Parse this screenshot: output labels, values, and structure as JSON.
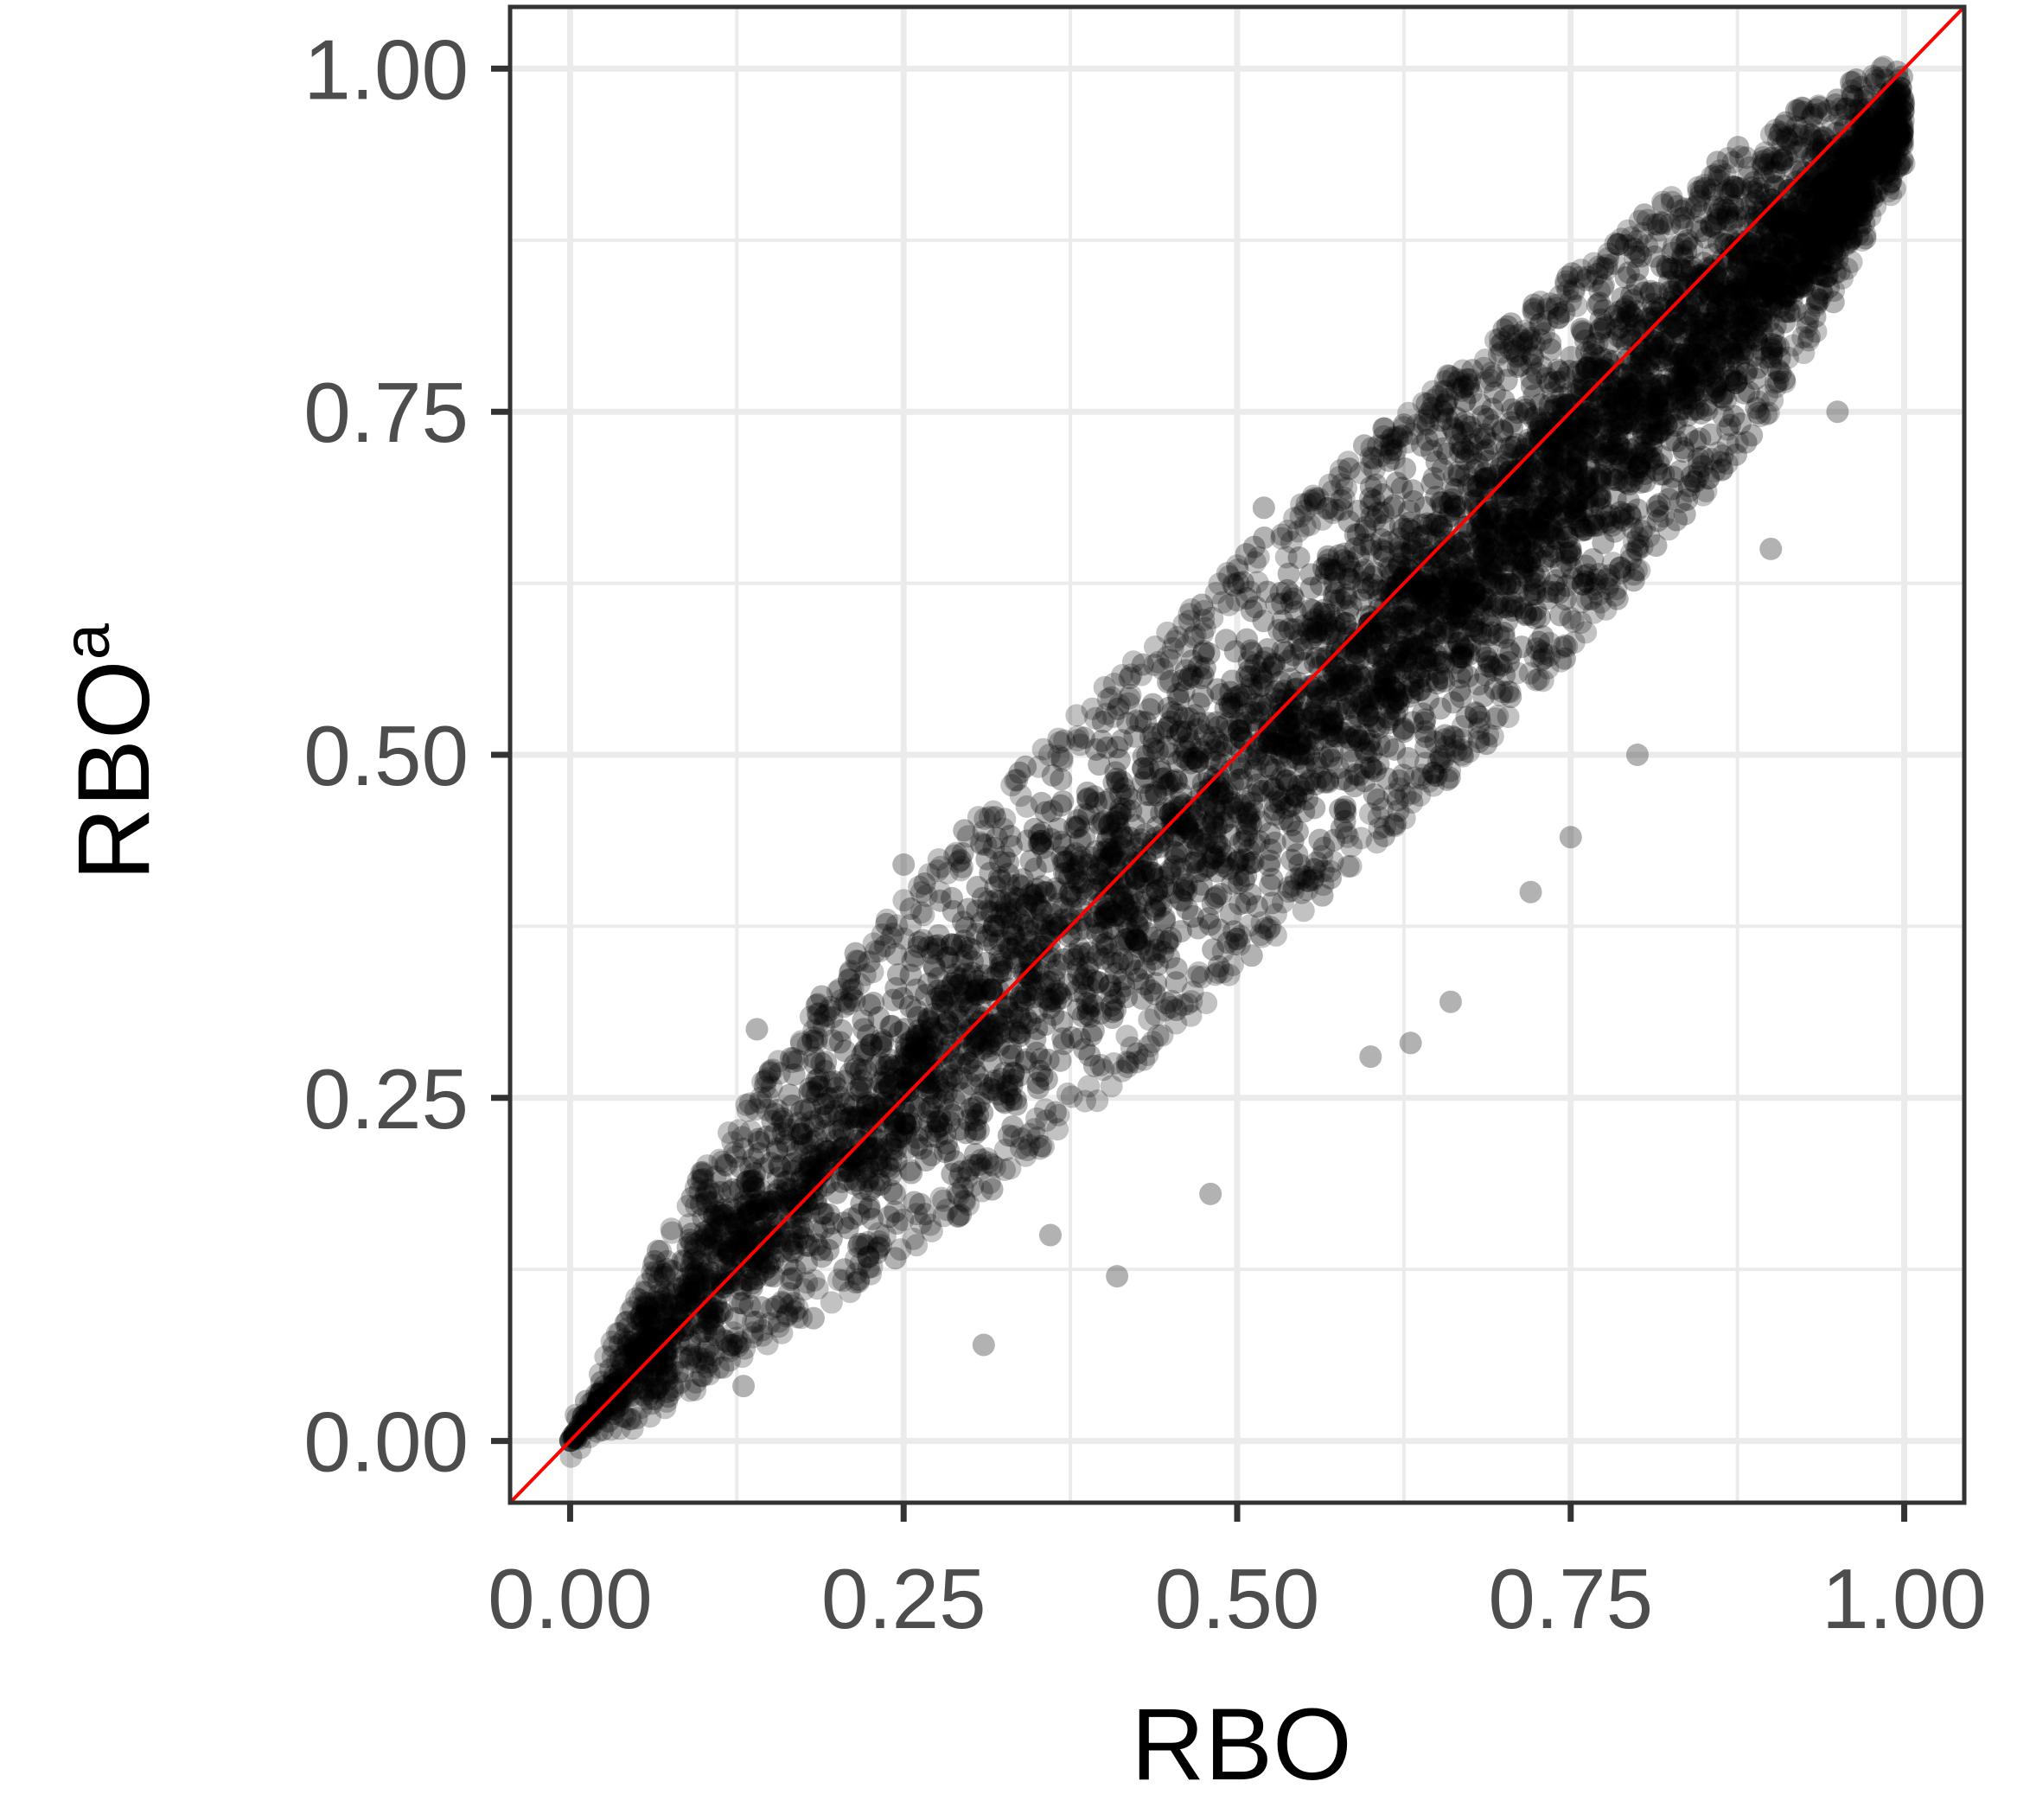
{
  "chart_data": {
    "type": "scatter",
    "title": "",
    "xlabel": "RBO",
    "ylabel_base": "RBO",
    "ylabel_superscript": "a",
    "xlim": [
      -0.045,
      1.045
    ],
    "ylim": [
      -0.045,
      1.045
    ],
    "x_ticks": [
      0.0,
      0.25,
      0.5,
      0.75,
      1.0
    ],
    "x_tick_labels": [
      "0.00",
      "0.25",
      "0.50",
      "0.75",
      "1.00"
    ],
    "y_ticks": [
      0.0,
      0.25,
      0.5,
      0.75,
      1.0
    ],
    "y_tick_labels": [
      "0.00",
      "0.25",
      "0.50",
      "0.75",
      "1.00"
    ],
    "minor_grid": [
      0.125,
      0.375,
      0.625,
      0.875
    ],
    "grid": true,
    "legend": "none",
    "colors": {
      "points": "#000000",
      "reference_line": "#ff0000",
      "grid": "#ebebeb",
      "axis_text": "#4d4d4d",
      "axis_title": "#000000",
      "panel_border": "#333333"
    },
    "point_alpha": 0.3,
    "reference_line": {
      "x": [
        -0.045,
        1.045
      ],
      "y": [
        -0.045,
        1.045
      ],
      "label": ""
    },
    "point_cloud": {
      "description_of_trend": "dense cloud along y=x, widening in middle",
      "x_range": [
        0.0,
        1.0
      ],
      "y_range": [
        0.0,
        1.0
      ]
    },
    "density_envelope": [
      {
        "x": 0.0,
        "lower": 0.0,
        "upper": 0.0
      },
      {
        "x": 0.05,
        "lower": 0.02,
        "upper": 0.1
      },
      {
        "x": 0.1,
        "lower": 0.05,
        "upper": 0.19
      },
      {
        "x": 0.2,
        "lower": 0.11,
        "upper": 0.33
      },
      {
        "x": 0.3,
        "lower": 0.18,
        "upper": 0.44
      },
      {
        "x": 0.4,
        "lower": 0.26,
        "upper": 0.54
      },
      {
        "x": 0.5,
        "lower": 0.35,
        "upper": 0.63
      },
      {
        "x": 0.6,
        "lower": 0.44,
        "upper": 0.72
      },
      {
        "x": 0.7,
        "lower": 0.53,
        "upper": 0.8
      },
      {
        "x": 0.8,
        "lower": 0.64,
        "upper": 0.88
      },
      {
        "x": 0.9,
        "lower": 0.76,
        "upper": 0.95
      },
      {
        "x": 1.0,
        "lower": 0.93,
        "upper": 1.0
      }
    ],
    "outliers": [
      {
        "x": 0.41,
        "y": 0.12
      },
      {
        "x": 0.36,
        "y": 0.15
      },
      {
        "x": 0.48,
        "y": 0.18
      },
      {
        "x": 0.6,
        "y": 0.28
      },
      {
        "x": 0.63,
        "y": 0.29
      },
      {
        "x": 0.66,
        "y": 0.32
      },
      {
        "x": 0.72,
        "y": 0.4
      },
      {
        "x": 0.75,
        "y": 0.44
      },
      {
        "x": 0.8,
        "y": 0.5
      },
      {
        "x": 0.25,
        "y": 0.42
      },
      {
        "x": 0.14,
        "y": 0.3
      },
      {
        "x": 0.52,
        "y": 0.68
      },
      {
        "x": 0.9,
        "y": 0.65
      },
      {
        "x": 0.95,
        "y": 0.75
      },
      {
        "x": 0.13,
        "y": 0.04
      },
      {
        "x": 0.31,
        "y": 0.07
      }
    ]
  }
}
